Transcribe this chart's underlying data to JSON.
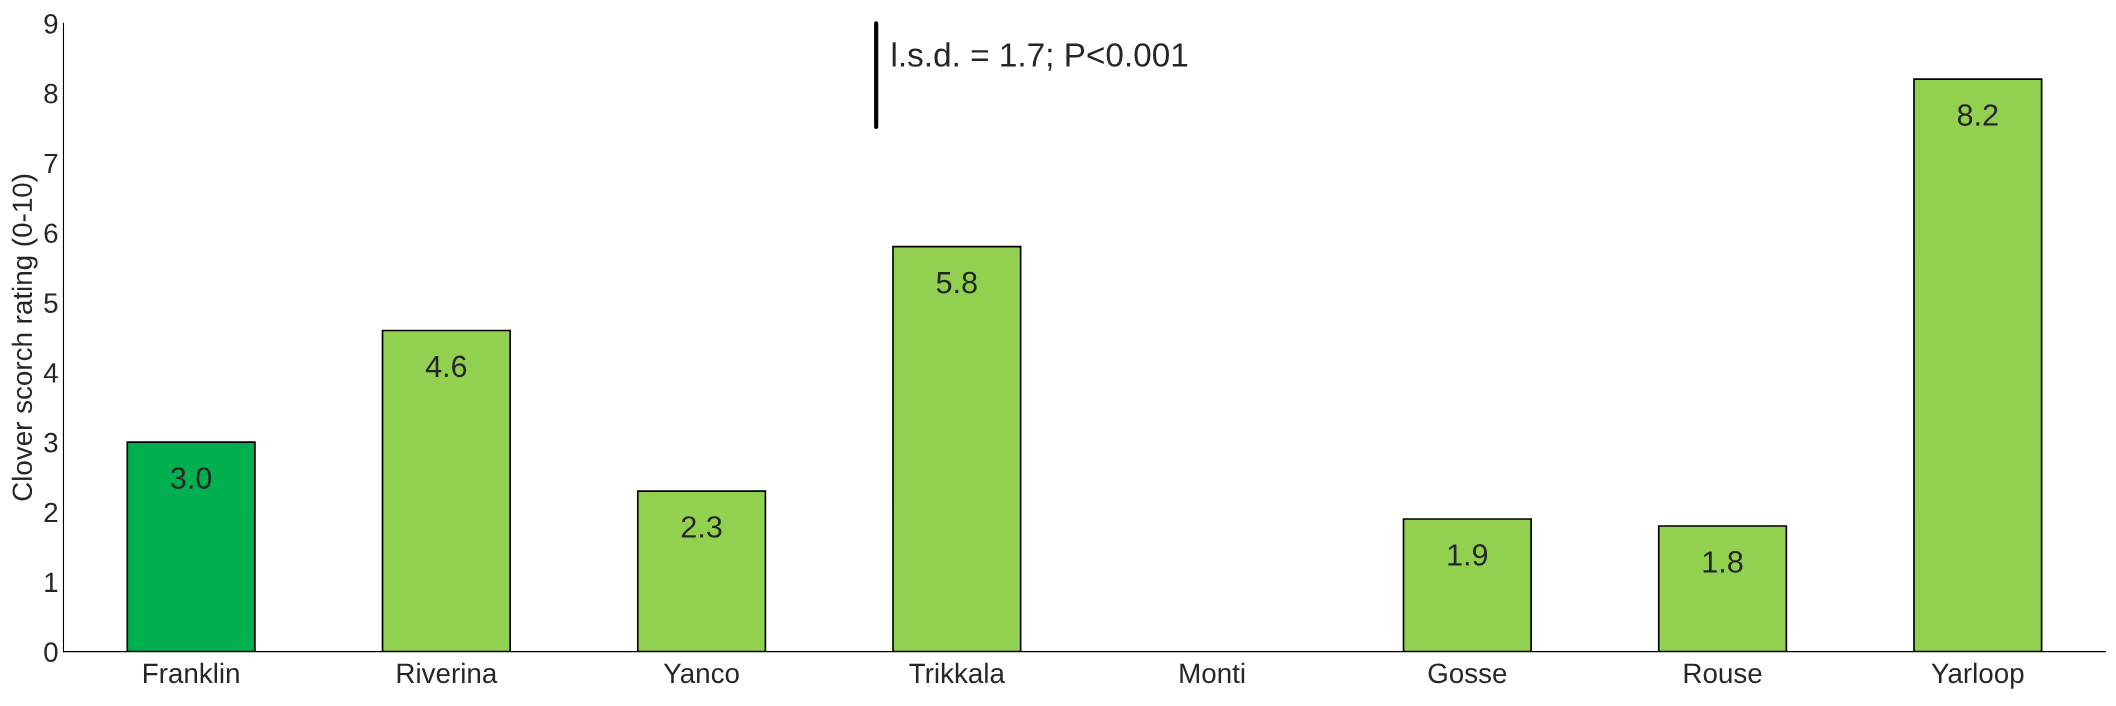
{
  "chart_data": {
    "type": "bar",
    "ylabel": "Clover scorch rating (0-10)",
    "categories": [
      "Franklin",
      "Riverina",
      "Yanco",
      "Trikkala",
      "Monti",
      "Gosse",
      "Rouse",
      "Yarloop"
    ],
    "values": [
      3.0,
      4.6,
      2.3,
      5.8,
      null,
      1.9,
      1.8,
      8.2
    ],
    "colors": [
      "#00b050",
      "#92d050",
      "#92d050",
      "#92d050",
      "#92d050",
      "#92d050",
      "#92d050",
      "#92d050"
    ],
    "value_labels": [
      "3.0",
      "4.6",
      "2.3",
      "5.8",
      null,
      "1.9",
      "1.8",
      "8.2"
    ],
    "ylim": [
      0,
      9
    ],
    "yticks": [
      0,
      1,
      2,
      3,
      4,
      5,
      6,
      7,
      8,
      9
    ],
    "grid": false,
    "legend": false,
    "annotations": [
      "l.s.d. = 1.7; P<0.001"
    ]
  }
}
